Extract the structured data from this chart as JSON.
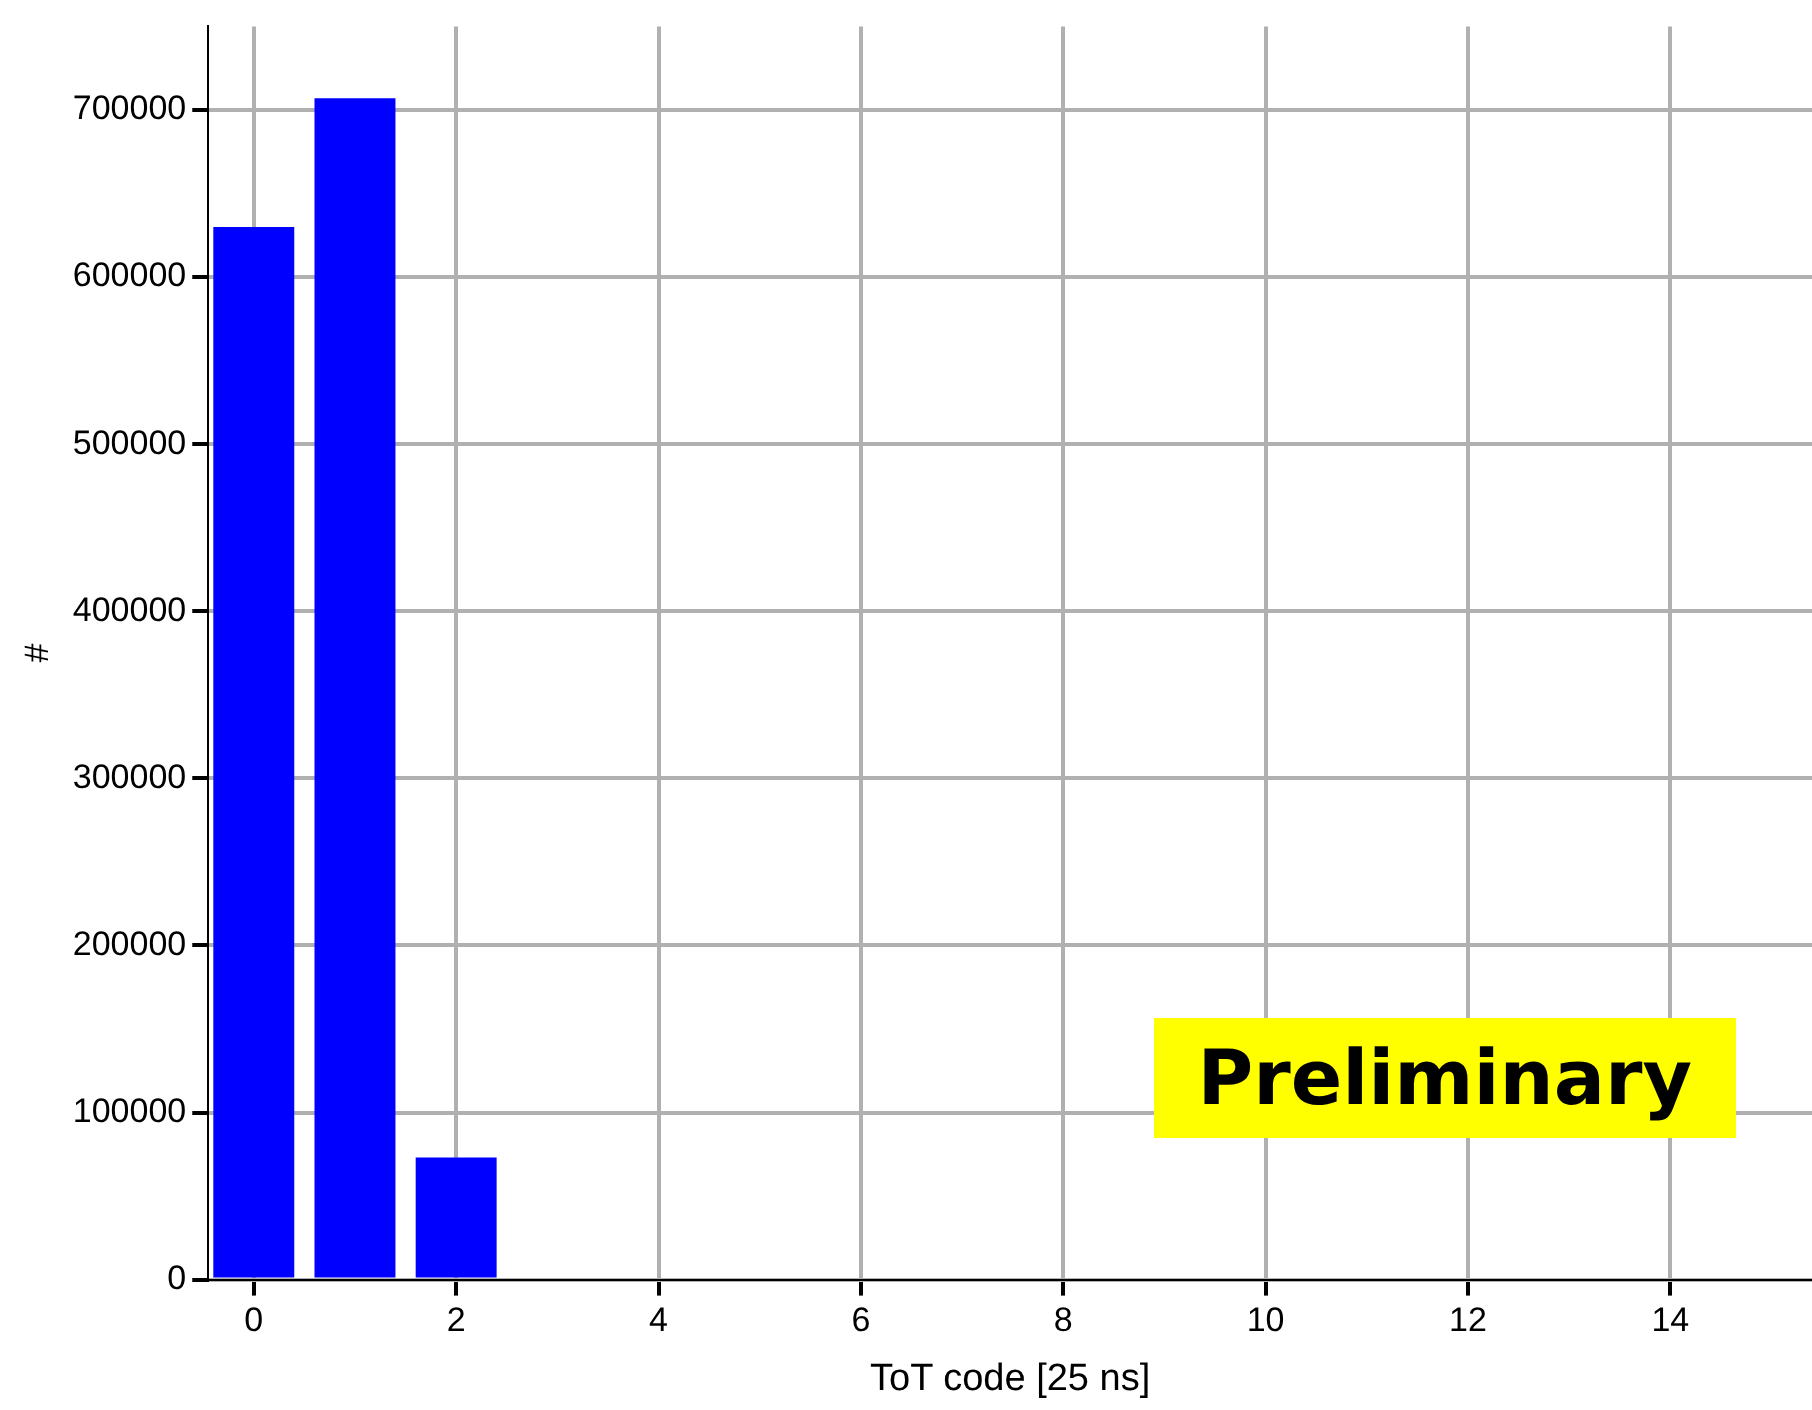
{
  "chart_data": {
    "type": "bar",
    "xlabel": "ToT code [25 ns]",
    "ylabel": "#",
    "x": [
      0,
      1,
      2
    ],
    "values": [
      630000,
      707000,
      73000
    ],
    "color": "#0000ff",
    "xlim": [
      -0.45,
      15.4
    ],
    "xticks": [
      0,
      2,
      4,
      6,
      8,
      10,
      12,
      14
    ],
    "ylim": [
      0,
      750000
    ],
    "yticks": [
      0,
      100000,
      200000,
      300000,
      400000,
      500000,
      600000,
      700000
    ],
    "grid": true,
    "annotations": [
      "Preliminary"
    ]
  }
}
